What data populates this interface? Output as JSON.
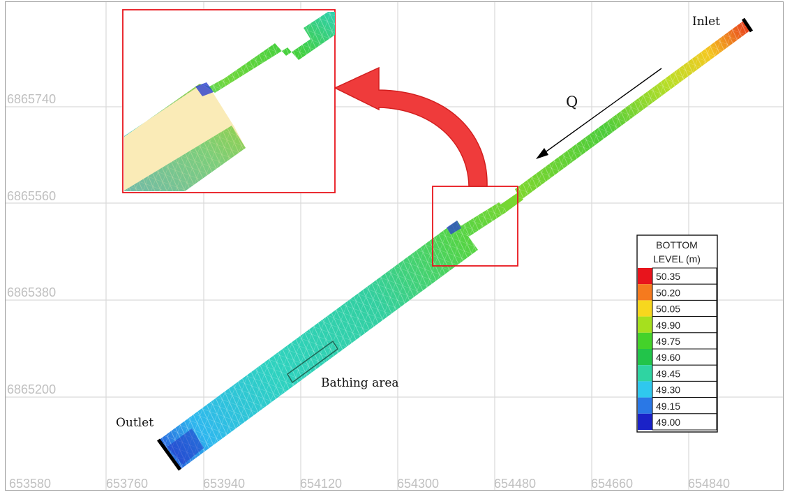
{
  "axes": {
    "x_ticks": [
      "653580",
      "653760",
      "653940",
      "654120",
      "654300",
      "654480",
      "654660",
      "654840"
    ],
    "y_ticks": [
      "6865740",
      "6865560",
      "6865380",
      "6865200"
    ]
  },
  "labels": {
    "inlet": "Inlet",
    "outlet": "Outlet",
    "flow": "Q",
    "bathing_area": "Bathing area"
  },
  "legend": {
    "title_line1": "BOTTOM",
    "title_line2": "LEVEL (m)",
    "entries": [
      {
        "value": "50.35",
        "color": "#e8141c"
      },
      {
        "value": "50.20",
        "color": "#f57a1e"
      },
      {
        "value": "50.05",
        "color": "#f7d71e"
      },
      {
        "value": "49.90",
        "color": "#a6e01e"
      },
      {
        "value": "49.75",
        "color": "#44d22a"
      },
      {
        "value": "49.60",
        "color": "#22c44a"
      },
      {
        "value": "49.45",
        "color": "#2fd4a2"
      },
      {
        "value": "49.30",
        "color": "#2fc8ee"
      },
      {
        "value": "49.15",
        "color": "#2a78e6"
      },
      {
        "value": "49.00",
        "color": "#1a22c8"
      }
    ]
  },
  "colors": {
    "grid": "#d9d9d9",
    "highlight": "#e8141c",
    "bathing_box": "#1f6b5a"
  }
}
